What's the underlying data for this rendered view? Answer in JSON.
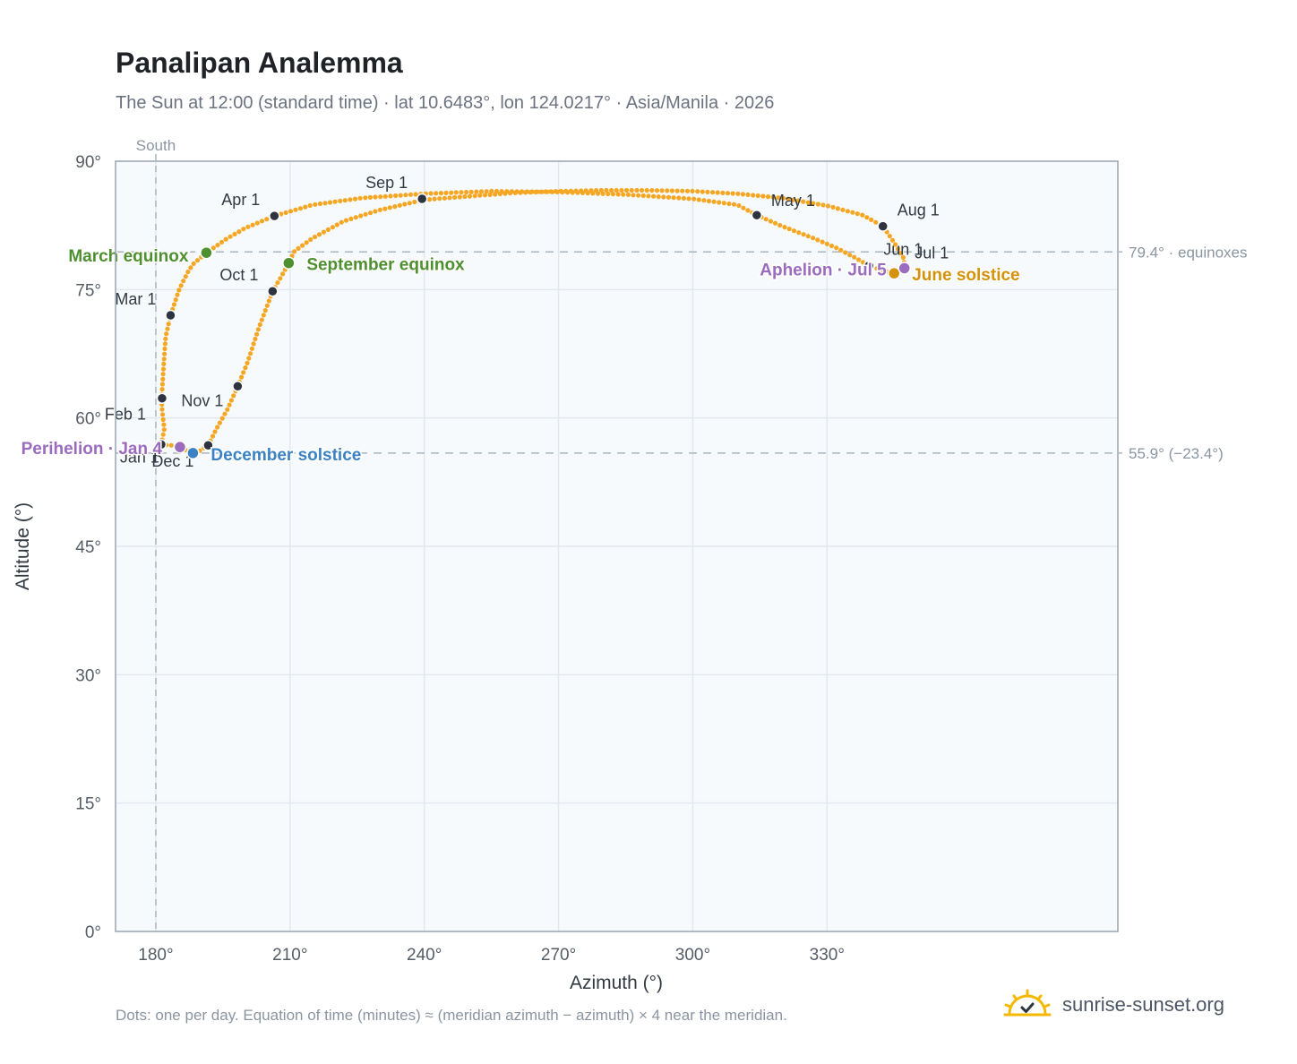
{
  "title": "Panalipan Analemma",
  "subtitle": "The Sun at 12:00 (standard time) · lat 10.6483°, lon 124.0217° · Asia/Manila · 2026",
  "footnote": "Dots: one per day. Equation of time (minutes) ≈ (meridian azimuth − azimuth) × 4 near the meridian.",
  "brand": {
    "text": "sunrise-sunset.org",
    "icon": "sun-check-icon"
  },
  "colors": {
    "curve": "#f5a623",
    "month_point": "#2d3440",
    "march_equinox": "#4e8f2f",
    "september_equinox": "#4e8f2f",
    "december_solstice": "#3b82c4",
    "june_solstice": "#d4920a",
    "perihelion": "#9b6bbd",
    "aphelion": "#9b6bbd",
    "plot_bg": "#f7fafd",
    "grid": "#e3e8ee",
    "axis_text": "#555d66",
    "reference_line": "#aab4bf"
  },
  "chart_data": {
    "type": "scatter",
    "xlabel": "Azimuth (°)",
    "ylabel": "Altitude (°)",
    "xlim": [
      171,
      395
    ],
    "ylim": [
      0,
      90
    ],
    "x_ticks": [
      180,
      210,
      240,
      270,
      300,
      330
    ],
    "x_tick_labels": [
      "180°",
      "210°",
      "240°",
      "270°",
      "300°",
      "330°"
    ],
    "y_ticks": [
      0,
      15,
      30,
      45,
      60,
      75,
      90
    ],
    "y_tick_labels": [
      "0°",
      "15°",
      "30°",
      "45°",
      "60°",
      "75°",
      "90°"
    ],
    "grid": true,
    "south_marker": {
      "azimuth": 180,
      "label": "South"
    },
    "reference_lines": [
      {
        "altitude": 79.4,
        "label": "79.4° · equinoxes"
      },
      {
        "altitude": 55.9,
        "label": "55.9° (−23.4°)"
      }
    ],
    "path": [
      [
        181.2,
        56.9
      ],
      [
        181.9,
        58.7
      ],
      [
        181.4,
        61.0
      ],
      [
        181.3,
        62.3
      ],
      [
        181.8,
        66.5
      ],
      [
        182.2,
        69.5
      ],
      [
        183.3,
        72.0
      ],
      [
        185.2,
        75.0
      ],
      [
        187.3,
        77.2
      ],
      [
        188.4,
        78.0
      ],
      [
        191.3,
        79.3
      ],
      [
        196.0,
        81.0
      ],
      [
        200.0,
        82.2
      ],
      [
        206.5,
        83.6
      ],
      [
        215.0,
        84.9
      ],
      [
        226.0,
        85.7
      ],
      [
        240.0,
        86.2
      ],
      [
        255.0,
        86.5
      ],
      [
        270.0,
        86.4
      ],
      [
        285.0,
        86.1
      ],
      [
        300.0,
        85.6
      ],
      [
        310.0,
        84.9
      ],
      [
        314.3,
        83.7
      ],
      [
        320.0,
        82.4
      ],
      [
        327.0,
        81.0
      ],
      [
        332.0,
        79.9
      ],
      [
        336.0,
        78.8
      ],
      [
        339.4,
        77.8
      ],
      [
        342.0,
        77.3
      ],
      [
        345.0,
        76.9
      ],
      [
        347.0,
        77.3
      ],
      [
        347.3,
        77.6
      ],
      [
        347.2,
        78.6
      ],
      [
        345.0,
        80.5
      ],
      [
        342.5,
        82.4
      ],
      [
        338.0,
        83.7
      ],
      [
        330.0,
        84.8
      ],
      [
        320.0,
        85.7
      ],
      [
        310.0,
        86.2
      ],
      [
        300.0,
        86.5
      ],
      [
        290.0,
        86.6
      ],
      [
        280.0,
        86.6
      ],
      [
        270.0,
        86.5
      ],
      [
        260.0,
        86.3
      ],
      [
        250.0,
        85.9
      ],
      [
        240.0,
        85.5
      ],
      [
        230.0,
        84.3
      ],
      [
        222.0,
        83.0
      ],
      [
        215.0,
        81.0
      ],
      [
        211.0,
        79.5
      ],
      [
        209.7,
        78.1
      ],
      [
        208.0,
        76.5
      ],
      [
        206.1,
        74.8
      ],
      [
        203.0,
        70.5
      ],
      [
        200.5,
        66.5
      ],
      [
        198.3,
        63.7
      ],
      [
        196.0,
        61.0
      ],
      [
        193.5,
        58.7
      ],
      [
        191.7,
        56.8
      ],
      [
        189.6,
        56.1
      ],
      [
        188.3,
        55.9
      ],
      [
        186.8,
        56.2
      ],
      [
        185.4,
        56.6
      ],
      [
        183.5,
        56.8
      ],
      [
        181.2,
        56.9
      ]
    ],
    "month_points": [
      {
        "label": "Jan 1",
        "azimuth": 181.2,
        "altitude": 56.9
      },
      {
        "label": "Feb 1",
        "azimuth": 181.4,
        "altitude": 62.3
      },
      {
        "label": "Mar 1",
        "azimuth": 183.3,
        "altitude": 72.0
      },
      {
        "label": "Apr 1",
        "azimuth": 206.5,
        "altitude": 83.6
      },
      {
        "label": "May 1",
        "azimuth": 314.3,
        "altitude": 83.7
      },
      {
        "label": "Jun 1",
        "azimuth": 339.4,
        "altitude": 77.8
      },
      {
        "label": "Jul 1",
        "azimuth": 347.2,
        "altitude": 77.6
      },
      {
        "label": "Aug 1",
        "azimuth": 342.5,
        "altitude": 82.4
      },
      {
        "label": "Sep 1",
        "azimuth": 239.5,
        "altitude": 85.6
      },
      {
        "label": "Oct 1",
        "azimuth": 206.1,
        "altitude": 74.8
      },
      {
        "label": "Nov 1",
        "azimuth": 198.3,
        "altitude": 63.7
      },
      {
        "label": "Dec 1",
        "azimuth": 191.7,
        "altitude": 56.8
      }
    ],
    "events": [
      {
        "key": "march_equinox",
        "label": "March equinox",
        "azimuth": 191.3,
        "altitude": 79.3
      },
      {
        "key": "september_equinox",
        "label": "September equinox",
        "azimuth": 209.7,
        "altitude": 78.1
      },
      {
        "key": "june_solstice",
        "label": "June solstice",
        "azimuth": 345.0,
        "altitude": 76.9
      },
      {
        "key": "december_solstice",
        "label": "December solstice",
        "azimuth": 188.3,
        "altitude": 55.9
      },
      {
        "key": "perihelion",
        "label": "Perihelion · Jan 4",
        "azimuth": 185.4,
        "altitude": 56.6
      },
      {
        "key": "aphelion",
        "label": "Aphelion · Jul 5",
        "azimuth": 347.3,
        "altitude": 77.5
      }
    ]
  }
}
